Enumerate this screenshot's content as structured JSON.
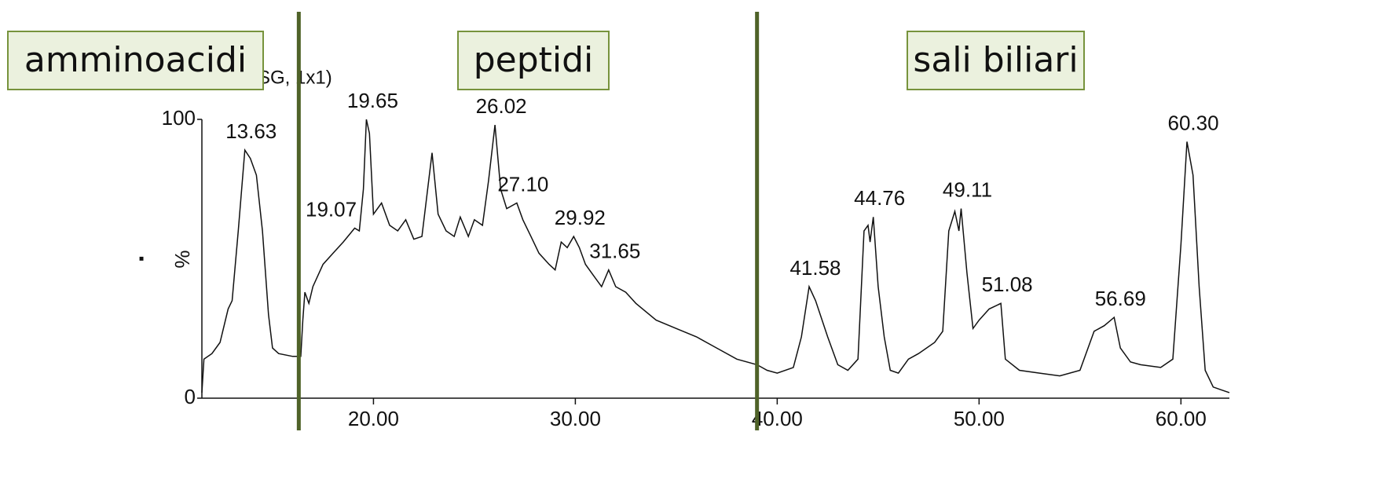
{
  "chart_data": {
    "type": "line",
    "regions": [
      "amminoacidi",
      "peptidi",
      "sali biliari"
    ],
    "subtitle": "(SG, 1x1)",
    "ylabel": "%",
    "marker": "▪",
    "dividers": [
      16.3,
      39.0
    ],
    "divider_color": "#4f6228",
    "color": "#111111",
    "xlim": [
      11.5,
      62.4
    ],
    "ylim": [
      0,
      100
    ],
    "yticks": [
      0,
      100
    ],
    "xticks": [
      {
        "value": 20,
        "label": "20.00"
      },
      {
        "value": 30,
        "label": "30.00"
      },
      {
        "value": 40,
        "label": "40.00"
      },
      {
        "value": 50,
        "label": "50.00"
      },
      {
        "value": 60,
        "label": "60.00"
      }
    ],
    "series": [
      {
        "name": null,
        "color": "#111111",
        "x": [
          11.5,
          11.6,
          12.0,
          12.4,
          12.8,
          13.0,
          13.3,
          13.63,
          13.9,
          14.2,
          14.5,
          14.8,
          15.0,
          15.3,
          16.0,
          16.4,
          16.5,
          16.6,
          16.8,
          17.0,
          17.5,
          18.0,
          18.5,
          19.07,
          19.3,
          19.5,
          19.65,
          19.8,
          20.0,
          20.4,
          20.8,
          21.2,
          21.6,
          22.0,
          22.4,
          22.9,
          23.2,
          23.6,
          24.0,
          24.3,
          24.7,
          25.0,
          25.4,
          25.7,
          26.02,
          26.3,
          26.6,
          27.1,
          27.4,
          27.8,
          28.2,
          28.7,
          29.0,
          29.3,
          29.6,
          29.92,
          30.2,
          30.5,
          30.9,
          31.3,
          31.65,
          32.0,
          32.5,
          33.0,
          34.0,
          35.0,
          36.0,
          37.0,
          38.0,
          39.0,
          39.5,
          40.0,
          40.8,
          41.2,
          41.58,
          41.9,
          42.5,
          43.0,
          43.5,
          44.0,
          44.3,
          44.5,
          44.6,
          44.76,
          45.0,
          45.3,
          45.6,
          46.0,
          46.5,
          47.0,
          47.8,
          48.2,
          48.5,
          48.8,
          49.0,
          49.11,
          49.4,
          49.7,
          50.0,
          50.5,
          51.08,
          51.3,
          52.0,
          53.0,
          54.0,
          55.0,
          55.7,
          56.2,
          56.69,
          57.0,
          57.5,
          58.0,
          59.0,
          59.6,
          60.0,
          60.3,
          60.6,
          60.9,
          61.2,
          61.6,
          62.0,
          62.4
        ],
        "values": [
          2,
          14,
          16,
          20,
          32,
          35,
          60,
          89,
          86,
          80,
          60,
          30,
          18,
          16,
          15,
          15,
          28,
          38,
          34,
          40,
          48,
          52,
          56,
          61,
          60,
          75,
          100,
          95,
          66,
          70,
          62,
          60,
          64,
          57,
          58,
          88,
          66,
          60,
          58,
          65,
          58,
          64,
          62,
          78,
          98,
          75,
          68,
          70,
          64,
          58,
          52,
          48,
          46,
          56,
          54,
          58,
          54,
          48,
          44,
          40,
          46,
          40,
          38,
          34,
          28,
          25,
          22,
          18,
          14,
          12,
          10,
          9,
          11,
          22,
          40,
          35,
          22,
          12,
          10,
          14,
          60,
          62,
          56,
          65,
          40,
          22,
          10,
          9,
          14,
          16,
          20,
          24,
          60,
          67,
          60,
          68,
          45,
          25,
          28,
          32,
          34,
          14,
          10,
          9,
          8,
          10,
          24,
          26,
          29,
          18,
          13,
          12,
          11,
          14,
          55,
          92,
          80,
          40,
          10,
          4,
          3,
          2
        ]
      }
    ],
    "annotations": [
      {
        "label": "13.63",
        "x": 13.63,
        "y": 89
      },
      {
        "label": "19.07",
        "x": 19.07,
        "y": 61
      },
      {
        "label": "19.65",
        "x": 19.65,
        "y": 100
      },
      {
        "label": "26.02",
        "x": 26.02,
        "y": 98
      },
      {
        "label": "27.10",
        "x": 27.1,
        "y": 70
      },
      {
        "label": "29.92",
        "x": 29.92,
        "y": 58
      },
      {
        "label": "31.65",
        "x": 31.65,
        "y": 46
      },
      {
        "label": "41.58",
        "x": 41.58,
        "y": 40
      },
      {
        "label": "44.76",
        "x": 44.76,
        "y": 65
      },
      {
        "label": "49.11",
        "x": 49.11,
        "y": 68
      },
      {
        "label": "51.08",
        "x": 51.08,
        "y": 34
      },
      {
        "label": "56.69",
        "x": 56.69,
        "y": 29
      },
      {
        "label": "60.30",
        "x": 60.3,
        "y": 92
      }
    ]
  }
}
